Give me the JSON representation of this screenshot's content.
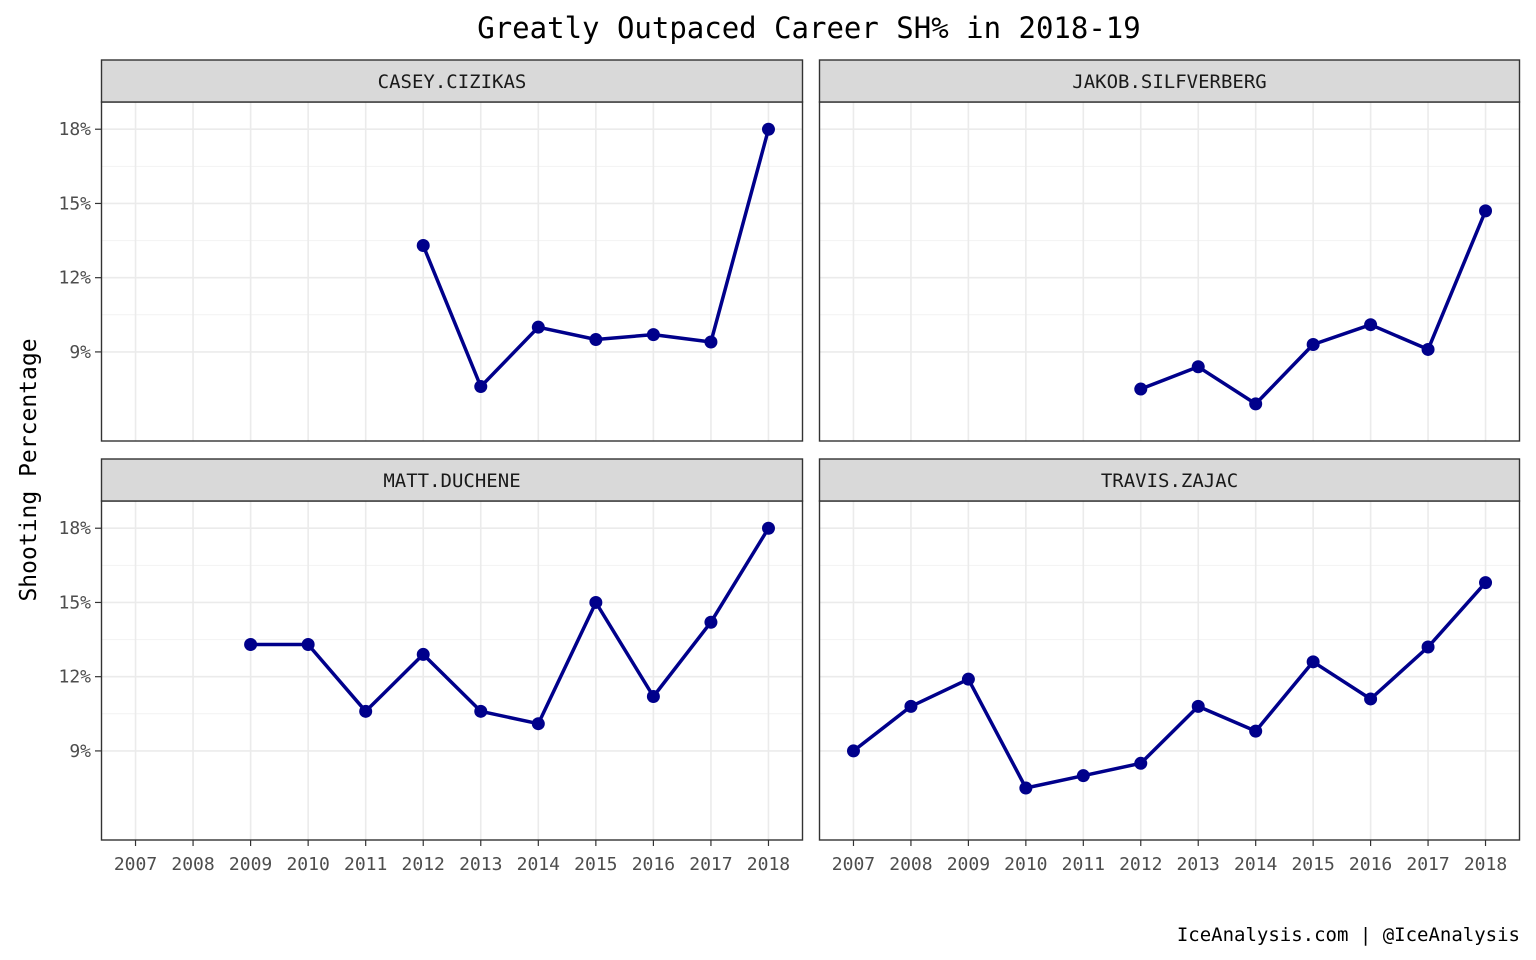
{
  "chart_data": {
    "type": "line",
    "title": "Greatly Outpaced Career SH% in 2018-19",
    "ylabel": "Shooting Percentage",
    "xlabel": "",
    "caption": "IceAnalysis.com | @IceAnalysis",
    "x_categories": [
      "2007",
      "2008",
      "2009",
      "2010",
      "2011",
      "2012",
      "2013",
      "2014",
      "2015",
      "2016",
      "2017",
      "2018"
    ],
    "y_ticks": [
      9,
      12,
      15,
      18
    ],
    "y_tick_labels": [
      "9%",
      "12%",
      "15%",
      "18%"
    ],
    "ylim": [
      5.4,
      19.1
    ],
    "xlim": [
      2006.4,
      2018.6
    ],
    "grid": true,
    "line_color": "#00008B",
    "panels": [
      {
        "name": "CASEY.CIZIKAS",
        "points": [
          {
            "x": 2012,
            "y": 13.3
          },
          {
            "x": 2013,
            "y": 7.6
          },
          {
            "x": 2014,
            "y": 10.0
          },
          {
            "x": 2015,
            "y": 9.5
          },
          {
            "x": 2016,
            "y": 9.7
          },
          {
            "x": 2017,
            "y": 9.4
          },
          {
            "x": 2018,
            "y": 18.0
          }
        ]
      },
      {
        "name": "JAKOB.SILFVERBERG",
        "points": [
          {
            "x": 2012,
            "y": 7.5
          },
          {
            "x": 2013,
            "y": 8.4
          },
          {
            "x": 2014,
            "y": 6.9
          },
          {
            "x": 2015,
            "y": 9.3
          },
          {
            "x": 2016,
            "y": 10.1
          },
          {
            "x": 2017,
            "y": 9.1
          },
          {
            "x": 2018,
            "y": 14.7
          }
        ]
      },
      {
        "name": "MATT.DUCHENE",
        "points": [
          {
            "x": 2009,
            "y": 13.3
          },
          {
            "x": 2010,
            "y": 13.3
          },
          {
            "x": 2011,
            "y": 10.6
          },
          {
            "x": 2012,
            "y": 12.9
          },
          {
            "x": 2013,
            "y": 10.6
          },
          {
            "x": 2014,
            "y": 10.1
          },
          {
            "x": 2015,
            "y": 15.0
          },
          {
            "x": 2016,
            "y": 11.2
          },
          {
            "x": 2017,
            "y": 14.2
          },
          {
            "x": 2018,
            "y": 18.0
          }
        ]
      },
      {
        "name": "TRAVIS.ZAJAC",
        "points": [
          {
            "x": 2007,
            "y": 9.0
          },
          {
            "x": 2008,
            "y": 10.8
          },
          {
            "x": 2009,
            "y": 11.9
          },
          {
            "x": 2010,
            "y": 7.5
          },
          {
            "x": 2011,
            "y": 8.0
          },
          {
            "x": 2012,
            "y": 8.5
          },
          {
            "x": 2013,
            "y": 10.8
          },
          {
            "x": 2014,
            "y": 9.8
          },
          {
            "x": 2015,
            "y": 12.6
          },
          {
            "x": 2016,
            "y": 11.1
          },
          {
            "x": 2017,
            "y": 13.2
          },
          {
            "x": 2018,
            "y": 15.8
          }
        ]
      }
    ]
  }
}
